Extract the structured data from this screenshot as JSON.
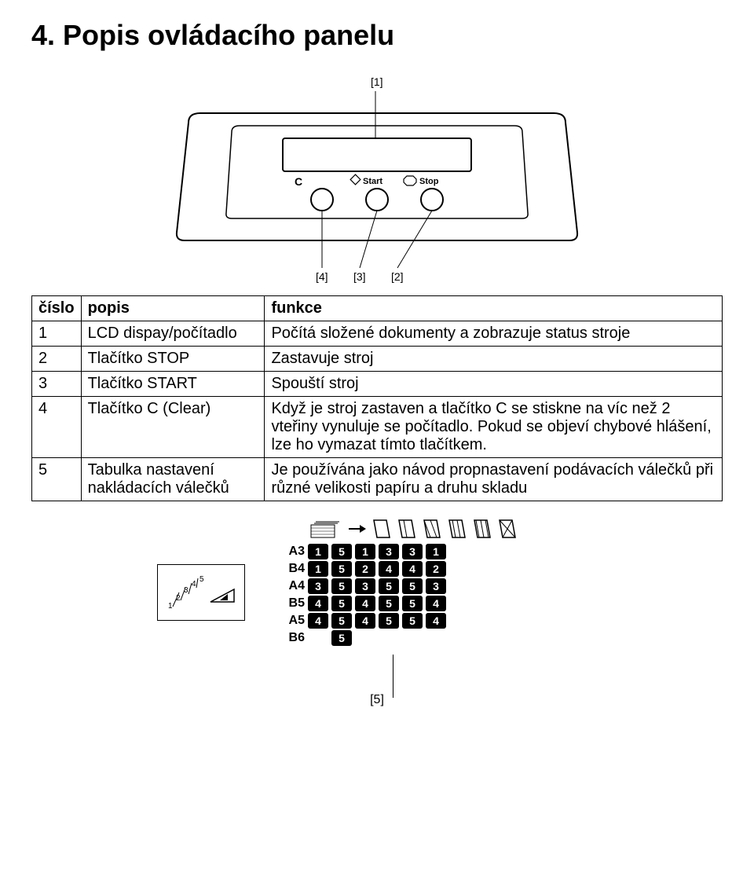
{
  "title": "4. Popis ovládacího panelu",
  "panel": {
    "callouts": {
      "top": "[1]",
      "b_left": "[4]",
      "b_mid": "[3]",
      "b_right": "[2]"
    },
    "buttons": {
      "c": "C",
      "start": "Start",
      "stop": "Stop"
    }
  },
  "table": {
    "headers": [
      "číslo",
      "popis",
      "funkce"
    ],
    "rows": [
      {
        "n": "1",
        "popis": "LCD dispay/počítadlo",
        "funkce": "Počítá složené dokumenty a zobrazuje status stroje"
      },
      {
        "n": "2",
        "popis": "Tlačítko STOP",
        "funkce": "Zastavuje stroj"
      },
      {
        "n": "3",
        "popis": "Tlačítko START",
        "funkce": "Spouští stroj"
      },
      {
        "n": "4",
        "popis": "Tlačítko C (Clear)",
        "funkce": "Když je stroj zastaven a tlačítko C se stiskne na víc než 2 vteřiny vynuluje se počítadlo. Pokud se objeví chybové hlášení, lze ho vymazat tímto tlačítkem."
      },
      {
        "n": "5",
        "popis": "Tabulka nastavení nakládacích válečků",
        "funkce": "Je používána jako návod propnastavení podávacích válečků při různé velikosti papíru a druhu skladu"
      }
    ]
  },
  "settings": {
    "rows": [
      {
        "label": "A3",
        "vals": [
          "1",
          "5",
          "1",
          "3",
          "3",
          "1"
        ]
      },
      {
        "label": "B4",
        "vals": [
          "1",
          "5",
          "2",
          "4",
          "4",
          "2"
        ]
      },
      {
        "label": "A4",
        "vals": [
          "3",
          "5",
          "3",
          "5",
          "5",
          "3"
        ]
      },
      {
        "label": "B5",
        "vals": [
          "4",
          "5",
          "4",
          "5",
          "5",
          "4"
        ]
      },
      {
        "label": "A5",
        "vals": [
          "4",
          "5",
          "4",
          "5",
          "5",
          "4"
        ]
      },
      {
        "label": "B6",
        "vals": [
          "",
          "5",
          "",
          "",
          "",
          ""
        ]
      }
    ],
    "bottom_callout": "[5]"
  }
}
